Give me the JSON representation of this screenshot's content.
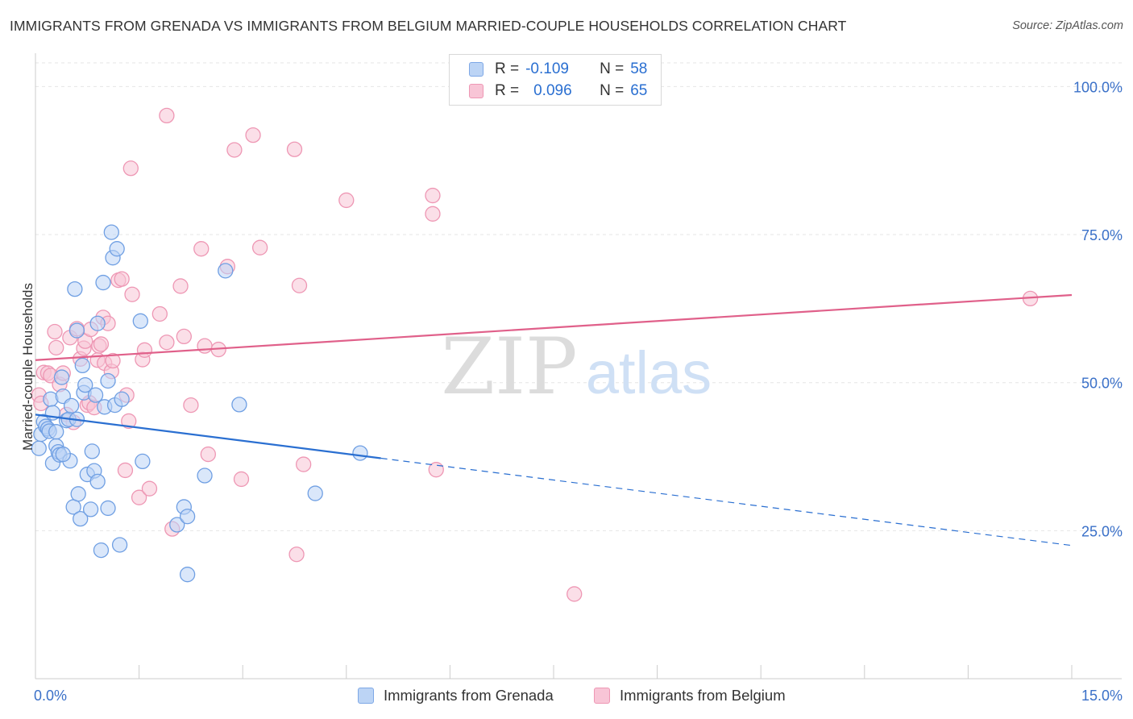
{
  "title": "IMMIGRANTS FROM GRENADA VS IMMIGRANTS FROM BELGIUM MARRIED-COUPLE HOUSEHOLDS CORRELATION CHART",
  "source": "Source: ZipAtlas.com",
  "watermark": {
    "zip": "ZIP",
    "atlas": "atlas"
  },
  "legend": {
    "r_label": "R =",
    "n_label": "N =",
    "rows": [
      {
        "r": "-0.109",
        "n": "58"
      },
      {
        "r": "0.096",
        "n": "65"
      }
    ]
  },
  "colors": {
    "blue_fill": "#bcd4f5",
    "blue_stroke": "#6f9fe3",
    "blue_line": "#2a6fd1",
    "pink_fill": "#f8c5d6",
    "pink_stroke": "#ee97b4",
    "pink_line": "#e0608a",
    "tick_color": "#3a70c8",
    "grid": "#e6e6e6"
  },
  "chart_data": {
    "type": "scatter",
    "title": "IMMIGRANTS FROM GRENADA VS IMMIGRANTS FROM BELGIUM MARRIED-COUPLE HOUSEHOLDS CORRELATION CHART",
    "xlabel": "",
    "ylabel": "Married-couple Households",
    "xlim": [
      0,
      15
    ],
    "ylim": [
      0,
      104
    ],
    "x_tick_labels": [
      "0.0%",
      "15.0%"
    ],
    "y_ticks": [
      25,
      50,
      75,
      100
    ],
    "y_tick_labels": [
      "25.0%",
      "50.0%",
      "75.0%",
      "100.0%"
    ],
    "grid": true,
    "series": [
      {
        "name": "Immigrants from Grenada",
        "color": "blue",
        "points": [
          [
            0.05,
            38.9
          ],
          [
            0.08,
            41.3
          ],
          [
            0.12,
            43.4
          ],
          [
            0.15,
            42.6
          ],
          [
            0.18,
            42.2
          ],
          [
            0.2,
            41.8
          ],
          [
            0.22,
            47.2
          ],
          [
            0.25,
            44.9
          ],
          [
            0.25,
            36.4
          ],
          [
            0.3,
            39.3
          ],
          [
            0.3,
            41.7
          ],
          [
            0.33,
            38.3
          ],
          [
            0.35,
            37.8
          ],
          [
            0.38,
            50.9
          ],
          [
            0.4,
            47.7
          ],
          [
            0.45,
            43.6
          ],
          [
            0.48,
            43.8
          ],
          [
            0.5,
            36.8
          ],
          [
            0.52,
            46.1
          ],
          [
            0.55,
            29.0
          ],
          [
            0.57,
            65.8
          ],
          [
            0.6,
            58.8
          ],
          [
            0.62,
            31.2
          ],
          [
            0.65,
            27.0
          ],
          [
            0.68,
            52.9
          ],
          [
            0.7,
            48.3
          ],
          [
            0.72,
            49.6
          ],
          [
            0.75,
            34.5
          ],
          [
            0.8,
            28.6
          ],
          [
            0.82,
            38.4
          ],
          [
            0.85,
            35.1
          ],
          [
            0.87,
            47.9
          ],
          [
            0.9,
            60.0
          ],
          [
            0.9,
            33.3
          ],
          [
            0.95,
            21.7
          ],
          [
            0.98,
            66.9
          ],
          [
            1.0,
            45.9
          ],
          [
            1.05,
            50.3
          ],
          [
            1.05,
            28.8
          ],
          [
            1.1,
            75.4
          ],
          [
            1.12,
            71.1
          ],
          [
            1.15,
            46.2
          ],
          [
            1.18,
            72.6
          ],
          [
            1.22,
            22.6
          ],
          [
            1.25,
            47.2
          ],
          [
            1.52,
            60.4
          ],
          [
            1.55,
            36.7
          ],
          [
            2.05,
            26.0
          ],
          [
            2.15,
            29.0
          ],
          [
            2.2,
            27.4
          ],
          [
            2.2,
            17.6
          ],
          [
            2.45,
            34.3
          ],
          [
            2.75,
            68.9
          ],
          [
            2.95,
            46.3
          ],
          [
            4.05,
            31.3
          ],
          [
            4.7,
            38.1
          ],
          [
            0.4,
            37.9
          ],
          [
            0.6,
            43.8
          ]
        ]
      },
      {
        "name": "Immigrants from Belgium",
        "color": "pink",
        "points": [
          [
            0.05,
            47.9
          ],
          [
            0.08,
            46.5
          ],
          [
            0.12,
            51.7
          ],
          [
            0.18,
            51.6
          ],
          [
            0.22,
            51.2
          ],
          [
            0.28,
            58.6
          ],
          [
            0.3,
            55.9
          ],
          [
            0.35,
            49.7
          ],
          [
            0.4,
            51.6
          ],
          [
            0.45,
            44.6
          ],
          [
            0.5,
            57.6
          ],
          [
            0.55,
            43.3
          ],
          [
            0.6,
            59.1
          ],
          [
            0.65,
            54.0
          ],
          [
            0.7,
            55.8
          ],
          [
            0.72,
            57.0
          ],
          [
            0.75,
            46.2
          ],
          [
            0.78,
            46.6
          ],
          [
            0.8,
            59.0
          ],
          [
            0.85,
            45.8
          ],
          [
            0.9,
            53.8
          ],
          [
            0.92,
            56.2
          ],
          [
            0.95,
            56.5
          ],
          [
            0.98,
            61.0
          ],
          [
            1.0,
            53.3
          ],
          [
            1.05,
            60.0
          ],
          [
            1.1,
            51.9
          ],
          [
            1.12,
            53.7
          ],
          [
            1.2,
            67.3
          ],
          [
            1.25,
            67.5
          ],
          [
            1.3,
            35.2
          ],
          [
            1.32,
            47.9
          ],
          [
            1.35,
            43.5
          ],
          [
            1.38,
            86.2
          ],
          [
            1.4,
            64.9
          ],
          [
            1.5,
            30.6
          ],
          [
            1.55,
            53.9
          ],
          [
            1.58,
            55.5
          ],
          [
            1.65,
            32.1
          ],
          [
            1.8,
            61.6
          ],
          [
            1.9,
            56.8
          ],
          [
            1.9,
            95.1
          ],
          [
            1.98,
            25.3
          ],
          [
            2.1,
            66.3
          ],
          [
            2.15,
            57.8
          ],
          [
            2.25,
            46.2
          ],
          [
            2.4,
            72.6
          ],
          [
            2.45,
            56.2
          ],
          [
            2.5,
            37.9
          ],
          [
            2.65,
            55.6
          ],
          [
            2.78,
            69.6
          ],
          [
            2.88,
            89.3
          ],
          [
            2.98,
            33.7
          ],
          [
            3.15,
            91.8
          ],
          [
            3.25,
            72.8
          ],
          [
            3.75,
            89.4
          ],
          [
            3.78,
            21.0
          ],
          [
            3.82,
            66.4
          ],
          [
            3.88,
            36.2
          ],
          [
            4.5,
            80.8
          ],
          [
            5.75,
            81.6
          ],
          [
            5.75,
            78.5
          ],
          [
            5.8,
            35.3
          ],
          [
            7.8,
            14.3
          ],
          [
            14.4,
            64.2
          ]
        ]
      }
    ],
    "trendlines": [
      {
        "series": "Immigrants from Grenada",
        "x0": 0,
        "y0": 44.6,
        "x_solid_end": 5.0,
        "x_end": 15,
        "y_end": 22.5,
        "extended_dashed": true
      },
      {
        "series": "Immigrants from Belgium",
        "x0": 0,
        "y0": 53.8,
        "x_end": 15,
        "y_end": 64.8,
        "extended_dashed": false
      }
    ]
  }
}
